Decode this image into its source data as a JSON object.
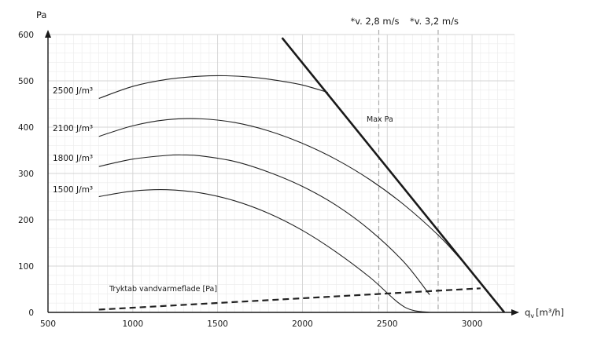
{
  "chart_data": {
    "type": "line",
    "title": "",
    "xlabel_base": "q",
    "xlabel_sub": "v",
    "xlabel_unit": "[m³/h]",
    "ylabel": "Pa",
    "xlim": [
      500,
      3250
    ],
    "ylim": [
      0,
      600
    ],
    "x_ticks": [
      500,
      1000,
      1500,
      2000,
      2500,
      3000
    ],
    "y_ticks": [
      0,
      100,
      200,
      300,
      400,
      500,
      600
    ],
    "x_tick_labels": [
      "500",
      "1000",
      "1500",
      "2000",
      "2500",
      "3000"
    ],
    "y_tick_labels": [
      "0",
      "100",
      "200",
      "300",
      "400",
      "500",
      "600"
    ],
    "x_minor_step": 50,
    "y_minor_step": 20,
    "grid": true,
    "series": [
      {
        "name": "2500 J/m³",
        "x": [
          800,
          1000,
          1200,
          1400,
          1550,
          1700,
          1850,
          2000,
          2150
        ],
        "y": [
          462,
          488,
          503,
          510,
          511,
          508,
          501,
          491,
          475
        ]
      },
      {
        "name": "2100 J/m³",
        "x": [
          800,
          1000,
          1200,
          1400,
          1600,
          1800,
          2000,
          2200,
          2400,
          2600,
          2800,
          2920,
          3050
        ],
        "y": [
          380,
          403,
          416,
          418,
          410,
          392,
          365,
          330,
          286,
          232,
          167,
          120,
          65
        ]
      },
      {
        "name": "1800 J/m³",
        "x": [
          800,
          1000,
          1200,
          1300,
          1400,
          1600,
          1800,
          2000,
          2200,
          2400,
          2600,
          2750
        ],
        "y": [
          315,
          331,
          339,
          340,
          338,
          326,
          303,
          272,
          231,
          177,
          108,
          38
        ]
      },
      {
        "name": "1500 J/m³",
        "x": [
          800,
          1000,
          1200,
          1400,
          1600,
          1800,
          2000,
          2200,
          2400,
          2600,
          2750
        ],
        "y": [
          250,
          262,
          265,
          258,
          241,
          214,
          177,
          130,
          75,
          12,
          0
        ]
      },
      {
        "name": "Max Pa",
        "x": [
          1880,
          3190
        ],
        "y": [
          593,
          0
        ]
      },
      {
        "name": "Tryktab vandvarmeflade [Pa]",
        "x": [
          800,
          3050
        ],
        "y": [
          6,
          52
        ]
      }
    ],
    "velocity_lines": [
      {
        "label": "*v. 2,8 m/s",
        "x": 2450
      },
      {
        "label": "*v. 3,2 m/s",
        "x": 2800
      }
    ]
  },
  "colors": {
    "grid_major": "#d4d4d4",
    "grid_minor": "#ebebeb",
    "curve": "#222222",
    "max_line": "#1a1a1a",
    "velocity_line": "#aaaaaa",
    "axis": "#1a1a1a"
  }
}
